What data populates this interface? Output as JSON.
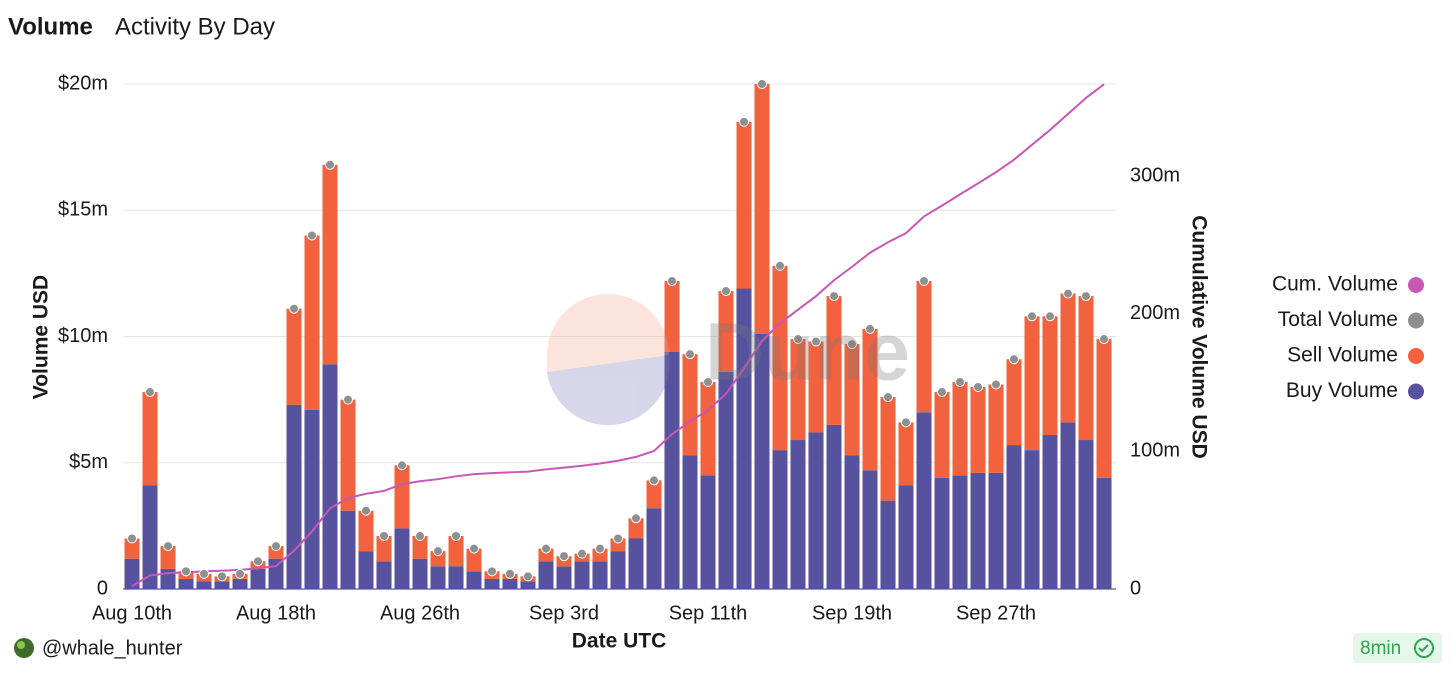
{
  "header": {
    "tabs": [
      "Volume",
      "Activity By Day"
    ]
  },
  "footer": {
    "author": "@whale_hunter",
    "age": "8min"
  },
  "watermark": "Dune",
  "chart_data": {
    "type": "bar",
    "stacked": true,
    "x_label": "Date UTC",
    "y_label": "Volume USD",
    "y2_label": "Cumulative Volume USD",
    "grid": true,
    "legend": "right",
    "categories": [
      "Aug 10th",
      null,
      null,
      null,
      null,
      null,
      null,
      null,
      "Aug 18th",
      null,
      null,
      null,
      null,
      null,
      null,
      null,
      "Aug 26th",
      null,
      null,
      null,
      null,
      null,
      null,
      null,
      "Sep 3rd",
      null,
      null,
      null,
      null,
      null,
      null,
      null,
      "Sep 11th",
      null,
      null,
      null,
      null,
      null,
      null,
      null,
      "Sep 19th",
      null,
      null,
      null,
      null,
      null,
      null,
      null,
      "Sep 27th",
      null,
      null,
      null,
      null,
      null,
      null
    ],
    "ylim": [
      0,
      20
    ],
    "yticks": [
      0,
      {
        "value": 5,
        "label": "$5m"
      },
      {
        "value": 10,
        "label": "$10m"
      },
      {
        "value": 15,
        "label": "$15m"
      },
      {
        "value": 20,
        "label": "$20m"
      }
    ],
    "y2lim": [
      0,
      367
    ],
    "y2ticks": [
      0,
      {
        "value": 100,
        "label": "100m"
      },
      {
        "value": 200,
        "label": "200m"
      },
      {
        "value": 300,
        "label": "300m"
      }
    ],
    "series": [
      {
        "name": "Cum. Volume",
        "type": "line",
        "axis": "y2",
        "color": "#c957b6",
        "values": [
          2.0,
          9.8,
          11.5,
          12.2,
          12.8,
          13.3,
          13.9,
          15.0,
          16.7,
          27.8,
          41.8,
          58.6,
          66.1,
          69.2,
          71.3,
          76.2,
          78.3,
          79.8,
          81.9,
          83.5,
          84.2,
          84.8,
          85.3,
          86.9,
          88.2,
          89.6,
          91.2,
          93.2,
          96.0,
          100.3,
          112.5,
          121.8,
          130.0,
          141.8,
          160.3,
          180.3,
          193.1,
          203.0,
          212.8,
          224.4,
          234.1,
          244.4,
          252.0,
          258.6,
          270.8,
          278.6,
          286.8,
          294.8,
          302.9,
          312.0,
          322.8,
          333.6,
          345.3,
          356.9,
          366.8
        ]
      },
      {
        "name": "Total Volume",
        "type": "dot",
        "color": "#8f8f8f",
        "values": [
          2.0,
          7.8,
          1.7,
          0.7,
          0.6,
          0.5,
          0.6,
          1.1,
          1.7,
          11.1,
          14.0,
          16.8,
          7.5,
          3.1,
          2.1,
          4.9,
          2.1,
          1.5,
          2.1,
          1.6,
          0.7,
          0.6,
          0.5,
          1.6,
          1.3,
          1.4,
          1.6,
          2.0,
          2.8,
          4.3,
          12.2,
          9.3,
          8.2,
          11.8,
          18.5,
          20.0,
          12.8,
          9.9,
          9.8,
          11.6,
          9.7,
          10.3,
          7.6,
          6.6,
          12.2,
          7.8,
          8.2,
          8.0,
          8.1,
          9.1,
          10.8,
          10.8,
          11.7,
          11.6,
          9.9
        ]
      },
      {
        "name": "Sell Volume",
        "type": "bar",
        "color": "#f2623e",
        "values": [
          0.8,
          3.7,
          0.9,
          0.3,
          0.3,
          0.2,
          0.2,
          0.3,
          0.5,
          3.8,
          6.9,
          7.9,
          4.4,
          1.6,
          1.0,
          2.5,
          0.9,
          0.6,
          1.2,
          0.9,
          0.3,
          0.2,
          0.2,
          0.5,
          0.4,
          0.3,
          0.5,
          0.5,
          0.8,
          1.1,
          2.8,
          4.0,
          3.7,
          3.2,
          6.6,
          9.9,
          7.3,
          4.0,
          3.6,
          5.1,
          4.4,
          5.6,
          4.1,
          2.5,
          5.2,
          3.4,
          3.7,
          3.4,
          3.5,
          3.4,
          5.3,
          4.7,
          5.1,
          5.7,
          5.5
        ]
      },
      {
        "name": "Buy Volume",
        "type": "bar",
        "color": "#57529e",
        "values": [
          1.2,
          4.1,
          0.8,
          0.4,
          0.3,
          0.3,
          0.4,
          0.8,
          1.2,
          7.3,
          7.1,
          8.9,
          3.1,
          1.5,
          1.1,
          2.4,
          1.2,
          0.9,
          0.9,
          0.7,
          0.4,
          0.4,
          0.3,
          1.1,
          0.9,
          1.1,
          1.1,
          1.5,
          2.0,
          3.2,
          9.4,
          5.3,
          4.5,
          8.6,
          11.9,
          10.1,
          5.5,
          5.9,
          6.2,
          6.5,
          5.3,
          4.7,
          3.5,
          4.1,
          7.0,
          4.4,
          4.5,
          4.6,
          4.6,
          5.7,
          5.5,
          6.1,
          6.6,
          5.9,
          4.4
        ]
      }
    ]
  }
}
